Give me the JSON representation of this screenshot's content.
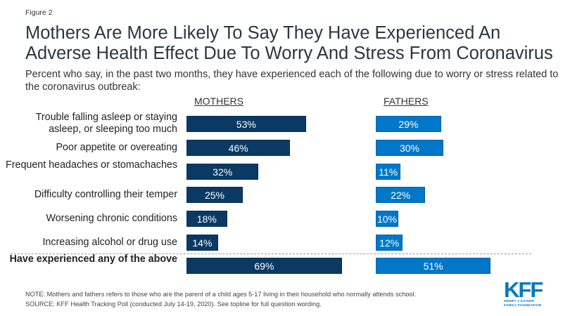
{
  "figure_label": "Figure 2",
  "title": "Mothers Are More Likely To Say They Have Experienced An Adverse Health Effect Due To Worry And Stress From Coronavirus",
  "subtitle": "Percent who say, in the past two months, they have experienced each of the following due to worry or stress related to the coronavirus outbreak:",
  "note": "NOTE: Mothers and fathers refers to those who are the parent of a child ages 5-17 living in their household who normally attends school.",
  "source": "SOURCE: KFF Health Tracking Poll (conducted July 14-19, 2020). See topline for full question wording.",
  "logo": {
    "name": "KFF",
    "line1": "HENRY J KAISER",
    "line2": "FAMILY FOUNDATION"
  },
  "chart_data": {
    "type": "bar",
    "orientation": "horizontal",
    "title": "Mothers Are More Likely To Say They Have Experienced An Adverse Health Effect Due To Worry And Stress From Coronavirus",
    "xlabel": "",
    "ylabel": "",
    "xlim": [
      0,
      100
    ],
    "categories": [
      "Trouble falling asleep or staying asleep, or sleeping too much",
      "Poor appetite or overeating",
      "Frequent headaches or stomachaches",
      "Difficulty controlling their temper",
      "Worsening chronic conditions",
      "Increasing alcohol or drug use",
      "Have experienced any of the above"
    ],
    "series": [
      {
        "name": "MOTHERS",
        "color": "#0a3a63",
        "values": [
          53,
          46,
          32,
          25,
          18,
          14,
          69
        ],
        "labels": [
          "53%",
          "46%",
          "32%",
          "25%",
          "18%",
          "14%",
          "69%"
        ]
      },
      {
        "name": "FATHERS",
        "color": "#0077c8",
        "values": [
          29,
          30,
          11,
          22,
          10,
          12,
          51
        ],
        "labels": [
          "29%",
          "30%",
          "11%",
          "22%",
          "10%",
          "12%",
          "51%"
        ]
      }
    ],
    "summary_row_index": 6,
    "grid": false
  }
}
